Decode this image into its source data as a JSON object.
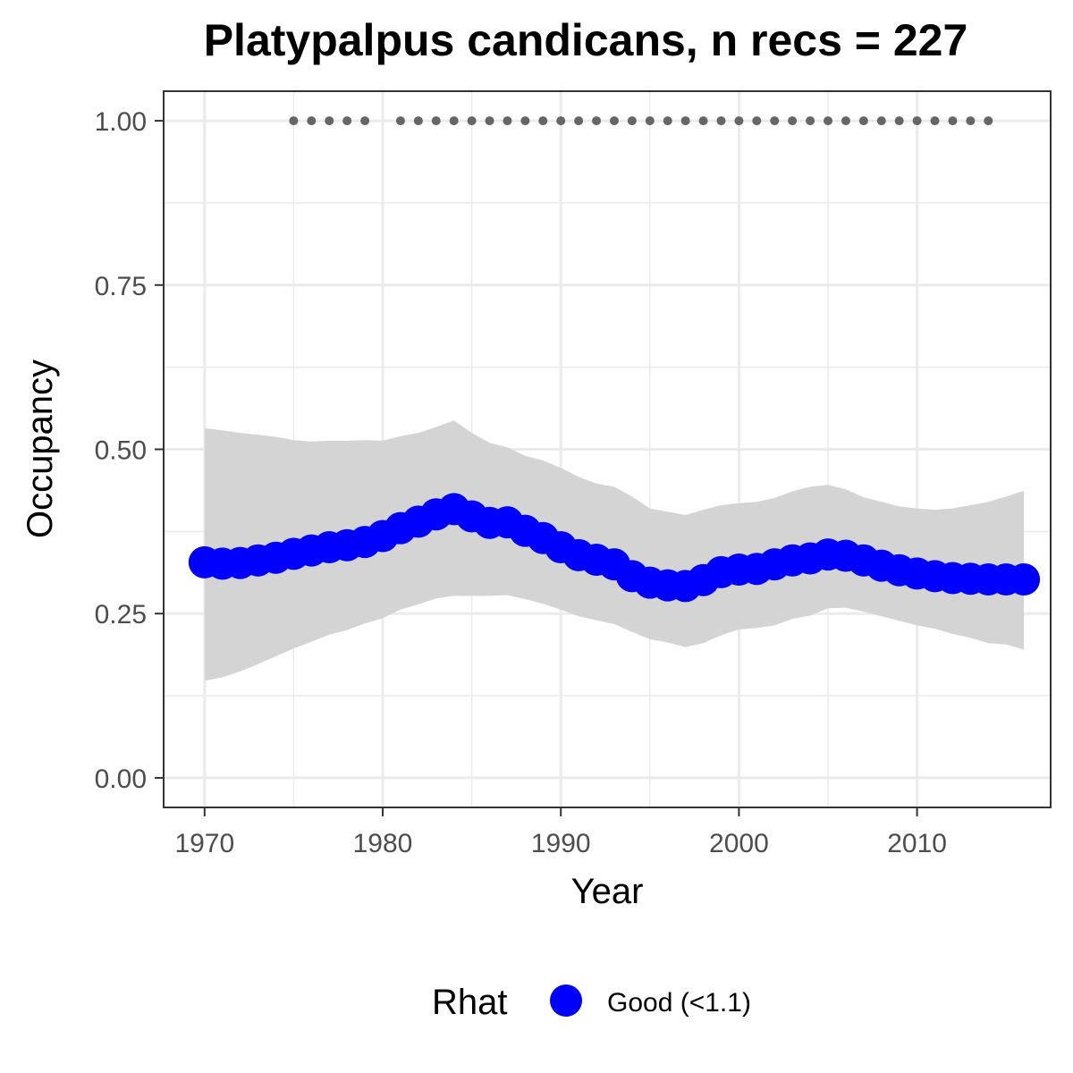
{
  "chart_data": {
    "type": "line",
    "title": "Platypalpus candicans, n recs = 227",
    "xlabel": "Year",
    "ylabel": "Occupancy",
    "xlim": [
      1967.7,
      2017.5
    ],
    "ylim": [
      -0.045,
      1.045
    ],
    "x_ticks": [
      1970,
      1980,
      1990,
      2000,
      2010
    ],
    "x_tick_labels": [
      "1970",
      "1980",
      "1990",
      "2000",
      "2010"
    ],
    "y_ticks": [
      0,
      0.25,
      0.5,
      0.75,
      1.0
    ],
    "y_tick_labels": [
      "0.00",
      "0.25",
      "0.50",
      "0.75",
      "1.00"
    ],
    "grid": true,
    "legend": {
      "title": "Rhat",
      "position": "bottom",
      "entries": [
        {
          "label": "Good (<1.1)",
          "color": "#0000ff"
        }
      ]
    },
    "series": [
      {
        "name": "Good (<1.1)",
        "color": "#0000ff",
        "x": [
          1970,
          1971,
          1972,
          1973,
          1974,
          1975,
          1976,
          1977,
          1978,
          1979,
          1980,
          1981,
          1982,
          1983,
          1984,
          1985,
          1986,
          1987,
          1988,
          1989,
          1990,
          1991,
          1992,
          1993,
          1994,
          1995,
          1996,
          1997,
          1998,
          1999,
          2000,
          2001,
          2002,
          2003,
          2004,
          2005,
          2006,
          2007,
          2008,
          2009,
          2010,
          2011,
          2012,
          2013,
          2014,
          2015,
          2016
        ],
        "y": [
          0.328,
          0.326,
          0.327,
          0.331,
          0.335,
          0.341,
          0.346,
          0.351,
          0.354,
          0.359,
          0.368,
          0.38,
          0.39,
          0.401,
          0.409,
          0.398,
          0.388,
          0.389,
          0.376,
          0.365,
          0.351,
          0.339,
          0.332,
          0.325,
          0.307,
          0.297,
          0.293,
          0.292,
          0.301,
          0.313,
          0.317,
          0.318,
          0.325,
          0.331,
          0.334,
          0.34,
          0.338,
          0.331,
          0.323,
          0.316,
          0.311,
          0.307,
          0.304,
          0.303,
          0.302,
          0.302,
          0.302
        ],
        "lower": [
          0.148,
          0.153,
          0.162,
          0.173,
          0.185,
          0.197,
          0.207,
          0.218,
          0.225,
          0.235,
          0.243,
          0.256,
          0.264,
          0.273,
          0.277,
          0.277,
          0.277,
          0.278,
          0.272,
          0.265,
          0.256,
          0.246,
          0.24,
          0.234,
          0.222,
          0.211,
          0.206,
          0.199,
          0.205,
          0.217,
          0.226,
          0.228,
          0.232,
          0.242,
          0.247,
          0.258,
          0.259,
          0.253,
          0.246,
          0.239,
          0.232,
          0.227,
          0.219,
          0.213,
          0.205,
          0.203,
          0.195
        ],
        "upper": [
          0.532,
          0.529,
          0.525,
          0.522,
          0.519,
          0.514,
          0.512,
          0.513,
          0.513,
          0.514,
          0.513,
          0.52,
          0.525,
          0.534,
          0.544,
          0.525,
          0.51,
          0.503,
          0.49,
          0.483,
          0.472,
          0.458,
          0.448,
          0.443,
          0.428,
          0.41,
          0.405,
          0.4,
          0.408,
          0.415,
          0.418,
          0.42,
          0.426,
          0.436,
          0.443,
          0.446,
          0.439,
          0.427,
          0.42,
          0.413,
          0.41,
          0.408,
          0.41,
          0.415,
          0.42,
          0.428,
          0.437
        ]
      }
    ],
    "record_years": {
      "y": 1.0,
      "color": "#666666",
      "x": [
        1975,
        1976,
        1977,
        1978,
        1979,
        1981,
        1982,
        1983,
        1984,
        1985,
        1986,
        1987,
        1988,
        1989,
        1990,
        1991,
        1992,
        1993,
        1994,
        1995,
        1996,
        1997,
        1998,
        1999,
        2000,
        2001,
        2002,
        2003,
        2004,
        2005,
        2006,
        2007,
        2008,
        2009,
        2010,
        2011,
        2012,
        2013,
        2014
      ]
    },
    "colors": {
      "band": "#d4d4d4",
      "grid": "#ebebeb",
      "frame": "#333333",
      "tick_text": "#4d4d4d"
    }
  }
}
